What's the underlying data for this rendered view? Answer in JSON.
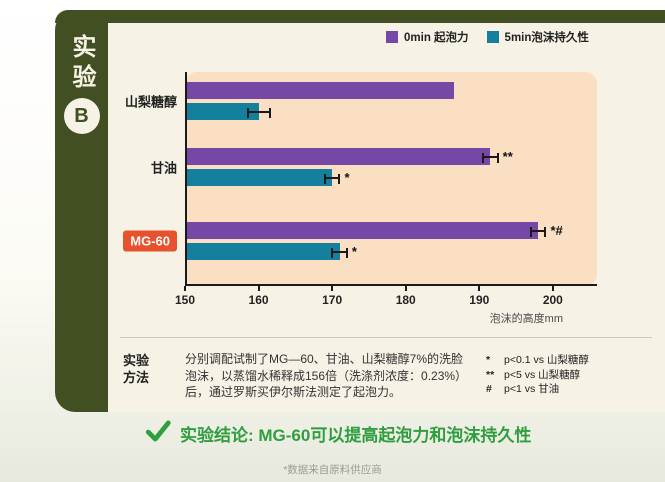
{
  "experiment": {
    "side_title": "实验",
    "side_badge": "B"
  },
  "chart_data": {
    "type": "bar",
    "orientation": "horizontal",
    "title": "",
    "xlabel": "泡沫的高度mm",
    "xlim": [
      150,
      206
    ],
    "xticks": [
      150,
      160,
      170,
      180,
      190,
      200
    ],
    "categories": [
      "山梨糖醇",
      "甘油",
      "MG-60"
    ],
    "highlight_category": "MG-60",
    "series": [
      {
        "name": "0min 起泡力",
        "color": "#7648a6",
        "values": [
          186.5,
          191.5,
          198
        ],
        "errors": [
          0,
          1,
          1
        ],
        "annotations": [
          "",
          "**",
          "*#"
        ]
      },
      {
        "name": "5min泡沫持久性",
        "color": "#14809e",
        "values": [
          160,
          170,
          171
        ],
        "errors": [
          1.5,
          1,
          1
        ],
        "annotations": [
          "",
          "*",
          "*"
        ]
      }
    ],
    "legend_position": "top",
    "grid": false,
    "plot_bg": "#fbdfc2"
  },
  "method": {
    "label": "实验\n方法",
    "text": "分别调配试制了MG—60、甘油、山梨糖醇7%的洗脸\n泡沫，以蒸馏水稀释成156倍（洗涤剂浓度：0.23%）\n后，通过罗斯买伊尔斯法测定了起泡力。",
    "stats": [
      {
        "symbol": "*",
        "text": "p<0.1 vs 山梨糖醇"
      },
      {
        "symbol": "**",
        "text": "p<5 vs 山梨糖醇"
      },
      {
        "symbol": "#",
        "text": "p<1 vs 甘油"
      }
    ]
  },
  "conclusion": {
    "text": "实验结论: MG-60可以提高起泡力和泡沫持久性"
  },
  "footnote": "*数据来自原料供应商",
  "colors": {
    "frame_green": "#424f22",
    "card_cream": "#f6f2e5",
    "plot_peach": "#fbdfc2",
    "series_purple": "#7648a6",
    "series_teal": "#14809e",
    "highlight_orange": "#e8512d",
    "conclusion_green": "#2f9e3f"
  }
}
